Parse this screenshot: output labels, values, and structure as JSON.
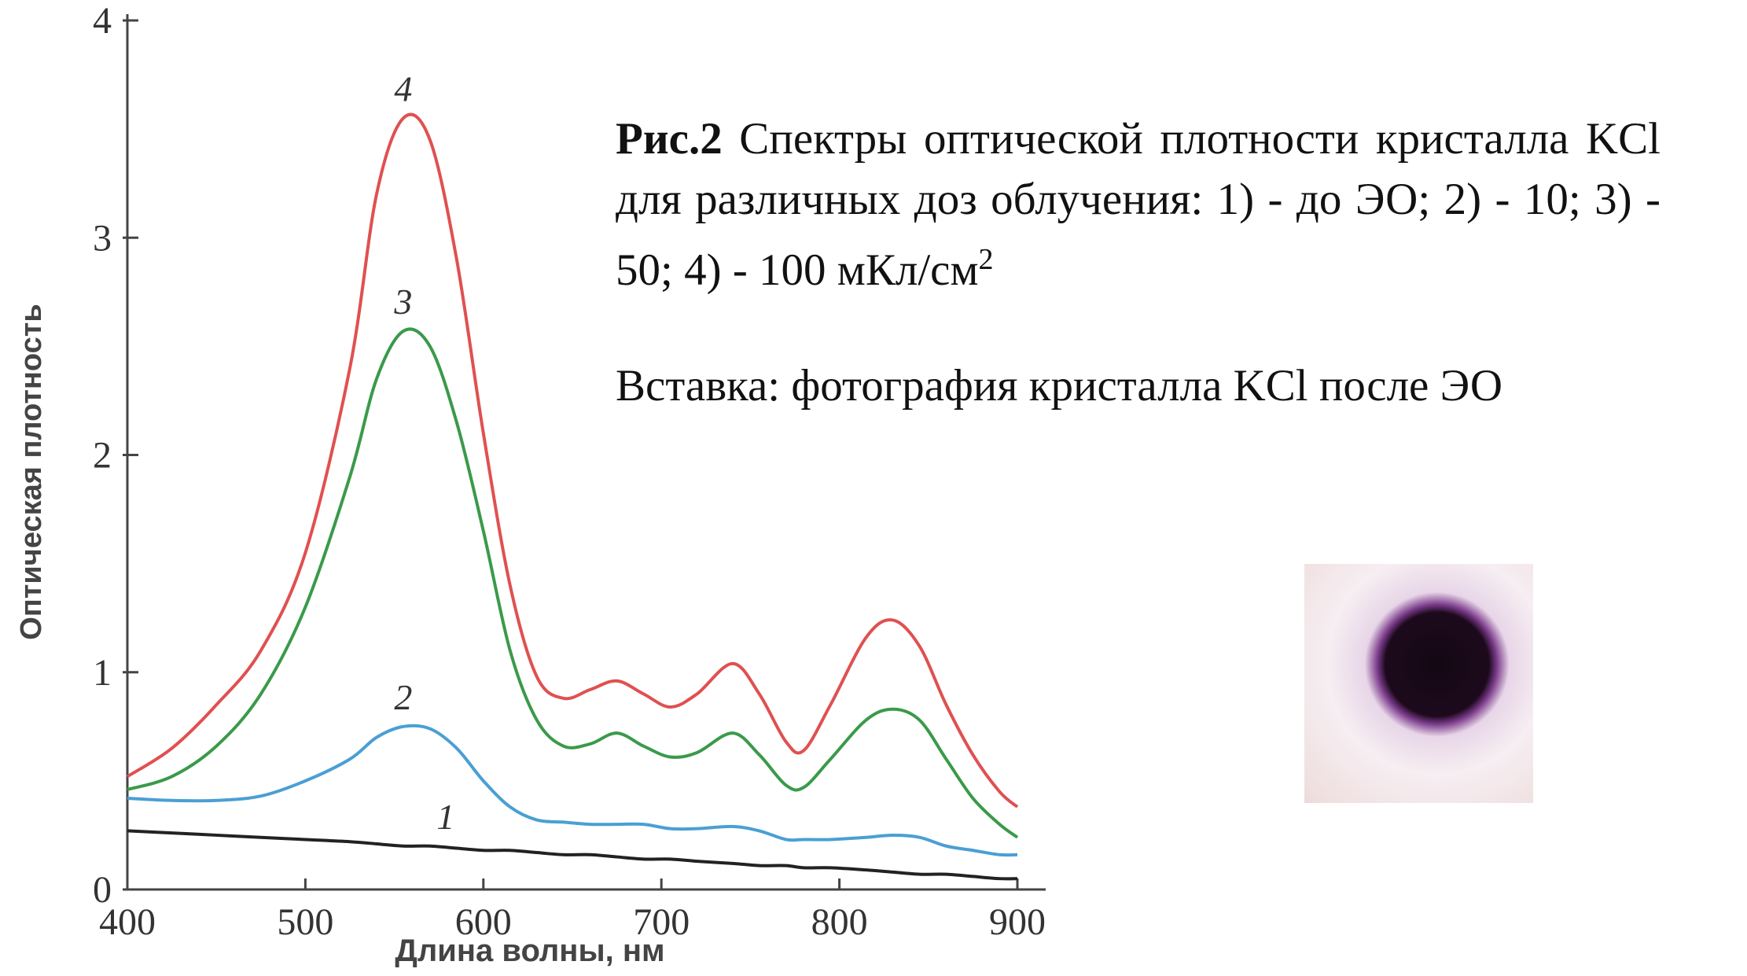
{
  "chart_data": {
    "type": "line",
    "x_label": "Длина волны, нм",
    "y_label": "Оптическая плотность",
    "x": [
      400,
      425,
      450,
      475,
      500,
      525,
      540,
      555,
      570,
      585,
      600,
      615,
      630,
      645,
      660,
      675,
      690,
      705,
      720,
      740,
      755,
      770,
      780,
      795,
      815,
      830,
      845,
      860,
      875,
      890,
      900
    ],
    "series": [
      {
        "name": "1",
        "color": "#222222",
        "values": [
          0.27,
          0.26,
          0.25,
          0.24,
          0.23,
          0.22,
          0.21,
          0.2,
          0.2,
          0.19,
          0.18,
          0.18,
          0.17,
          0.16,
          0.16,
          0.15,
          0.14,
          0.14,
          0.13,
          0.12,
          0.11,
          0.11,
          0.1,
          0.1,
          0.09,
          0.08,
          0.07,
          0.07,
          0.06,
          0.05,
          0.05
        ]
      },
      {
        "name": "2",
        "color": "#4a9fd4",
        "values": [
          0.42,
          0.41,
          0.41,
          0.43,
          0.5,
          0.6,
          0.7,
          0.75,
          0.74,
          0.65,
          0.5,
          0.38,
          0.32,
          0.31,
          0.3,
          0.3,
          0.3,
          0.28,
          0.28,
          0.29,
          0.27,
          0.23,
          0.23,
          0.23,
          0.24,
          0.25,
          0.24,
          0.2,
          0.18,
          0.16,
          0.16
        ]
      },
      {
        "name": "3",
        "color": "#3a9a4a",
        "values": [
          0.46,
          0.52,
          0.66,
          0.9,
          1.3,
          1.9,
          2.35,
          2.57,
          2.5,
          2.15,
          1.65,
          1.1,
          0.78,
          0.66,
          0.67,
          0.72,
          0.66,
          0.61,
          0.63,
          0.72,
          0.62,
          0.48,
          0.47,
          0.6,
          0.78,
          0.83,
          0.78,
          0.6,
          0.42,
          0.3,
          0.24
        ]
      },
      {
        "name": "4",
        "color": "#e05050",
        "values": [
          0.52,
          0.65,
          0.85,
          1.1,
          1.55,
          2.4,
          3.2,
          3.55,
          3.45,
          2.9,
          2.1,
          1.4,
          0.98,
          0.88,
          0.92,
          0.96,
          0.9,
          0.84,
          0.9,
          1.04,
          0.9,
          0.68,
          0.64,
          0.85,
          1.16,
          1.24,
          1.12,
          0.85,
          0.62,
          0.45,
          0.38
        ]
      }
    ],
    "xlim": [
      400,
      900
    ],
    "ylim": [
      0,
      4
    ],
    "xticks": [
      400,
      500,
      600,
      700,
      800,
      900
    ],
    "yticks": [
      0,
      1,
      2,
      3,
      4
    ]
  },
  "caption": {
    "label": "Рис.2",
    "text": "Спектры оптической плотности кристалла KCl для различных доз облучения: 1) - до ЭО; 2) - 10; 3) - 50; 4) - 100 мКл/см",
    "superscript": "2"
  },
  "inset_caption": "Вставка: фотография кристалла KCl после ЭО"
}
